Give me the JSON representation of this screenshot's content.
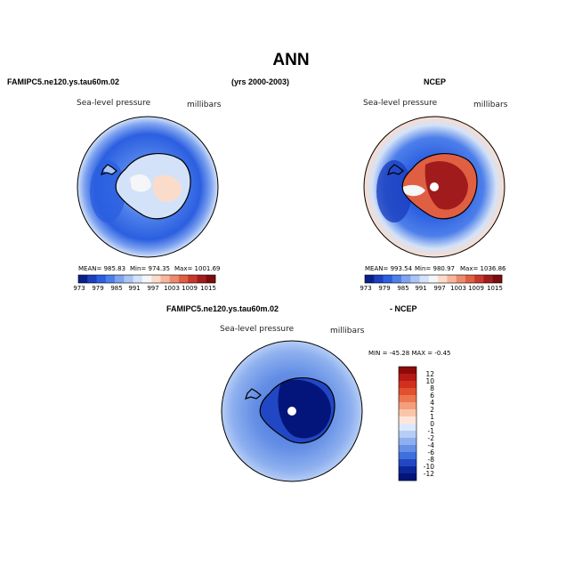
{
  "page": {
    "title": "ANN",
    "case_left": "FAMIPC5.ne120.ys.tau60m.02",
    "years": "(yrs 2000-2003)",
    "case_right": "NCEP",
    "diff_case": "FAMIPC5.ne120.ys.tau60m.02",
    "diff_suffix": "- NCEP"
  },
  "panels": {
    "model": {
      "variable": "Sea-level pressure",
      "units": "millibars",
      "mean_label": "MEAN= 985.83",
      "min_label": "Min= 974.35",
      "max_label": "Max= 1001.69",
      "mean": 985.83,
      "min": 974.35,
      "max": 1001.69
    },
    "obs": {
      "variable": "Sea-level pressure",
      "units": "millibars",
      "mean_label": "MEAN= 993.54",
      "min_label": "Min= 980.97",
      "max_label": "Max= 1036.86",
      "mean": 993.54,
      "min": 980.97,
      "max": 1036.86
    },
    "diff": {
      "variable": "Sea-level pressure",
      "units": "millibars",
      "minmax_label": "MIN = -45.28  MAX =  -0.45",
      "min": -45.28,
      "max": -0.45
    }
  },
  "colorbar_h": {
    "labels": [
      "973",
      "979",
      "985",
      "991",
      "997",
      "1003",
      "1009",
      "1015"
    ],
    "colors": [
      "#0b1f8a",
      "#1a3fbf",
      "#2b5fe0",
      "#4d7fea",
      "#7ea3f0",
      "#a9c4f5",
      "#d3e2f8",
      "#f4f6f8",
      "#fbdccb",
      "#f7b59c",
      "#ee8a6c",
      "#e05f43",
      "#c8382a",
      "#a01c1c",
      "#7a0c0c"
    ]
  },
  "colorbar_v": {
    "labels": [
      "12",
      "10",
      "8",
      "6",
      "4",
      "2",
      "1",
      "0",
      "-1",
      "-2",
      "-4",
      "-6",
      "-8",
      "-10",
      "-12"
    ],
    "colors": [
      "#8e0a0a",
      "#b51a14",
      "#d1301f",
      "#e2502f",
      "#ec7650",
      "#f59e7c",
      "#fac6aa",
      "#fde6d9",
      "#dce9fb",
      "#b6cdf5",
      "#8eb0ef",
      "#6690e6",
      "#3f6fdc",
      "#2147c4",
      "#0c2897",
      "#03157a"
    ]
  }
}
